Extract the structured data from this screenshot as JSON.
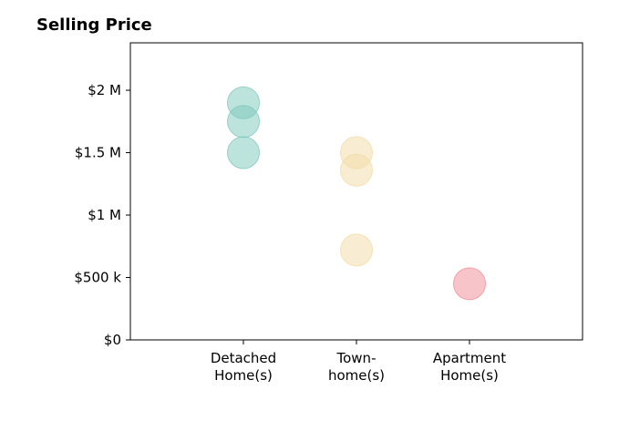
{
  "chart_data": {
    "type": "scatter",
    "title": "Selling Price",
    "xlabel": "",
    "ylabel": "",
    "categories": [
      [
        "Detached",
        "Home(s)"
      ],
      [
        "Town-",
        "home(s)"
      ],
      [
        "Apartment",
        "Home(s)"
      ]
    ],
    "y_ticks": [
      {
        "value": 0,
        "label": "$0"
      },
      {
        "value": 500000,
        "label": "$500 k"
      },
      {
        "value": 1000000,
        "label": "$1 M"
      },
      {
        "value": 1500000,
        "label": "$1.5 M"
      },
      {
        "value": 2000000,
        "label": "$2 M"
      }
    ],
    "xlim": [
      0,
      4
    ],
    "ylim": [
      0,
      2380000
    ],
    "grid": false,
    "points": [
      {
        "category": 0,
        "y": 1900000,
        "color": "#7cc7bb"
      },
      {
        "category": 0,
        "y": 1750000,
        "color": "#7cc7bb"
      },
      {
        "category": 0,
        "y": 1500000,
        "color": "#7cc7bb"
      },
      {
        "category": 1,
        "y": 1500000,
        "color": "#f2dca6"
      },
      {
        "category": 1,
        "y": 1360000,
        "color": "#f2dca6"
      },
      {
        "category": 1,
        "y": 720000,
        "color": "#f2dca6"
      },
      {
        "category": 2,
        "y": 450000,
        "color": "#f08b94"
      }
    ]
  }
}
